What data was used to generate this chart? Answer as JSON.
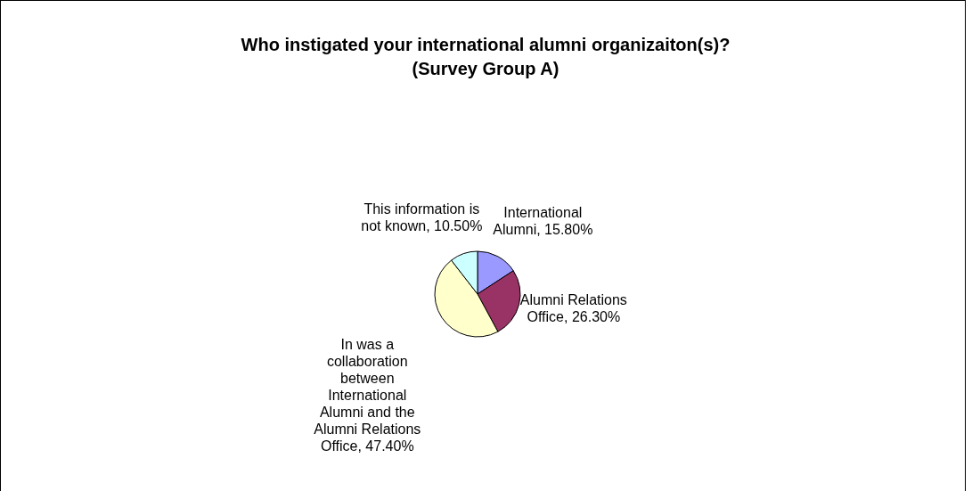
{
  "chart_data": {
    "type": "pie",
    "title": "Who instigated your international alumni organizaiton(s)?\n(Survey Group A)",
    "categories": [
      "International Alumni",
      "Alumni Relations Office",
      "In was a collaboration between International Alumni and the Alumni Relations Office",
      "This information is not known"
    ],
    "values": [
      15.8,
      26.3,
      47.4,
      10.5
    ],
    "value_labels": [
      "15.80%",
      "26.30%",
      "47.40%",
      "10.50%"
    ],
    "colors": [
      "#9999ff",
      "#993366",
      "#ffffcc",
      "#ccffff"
    ]
  }
}
